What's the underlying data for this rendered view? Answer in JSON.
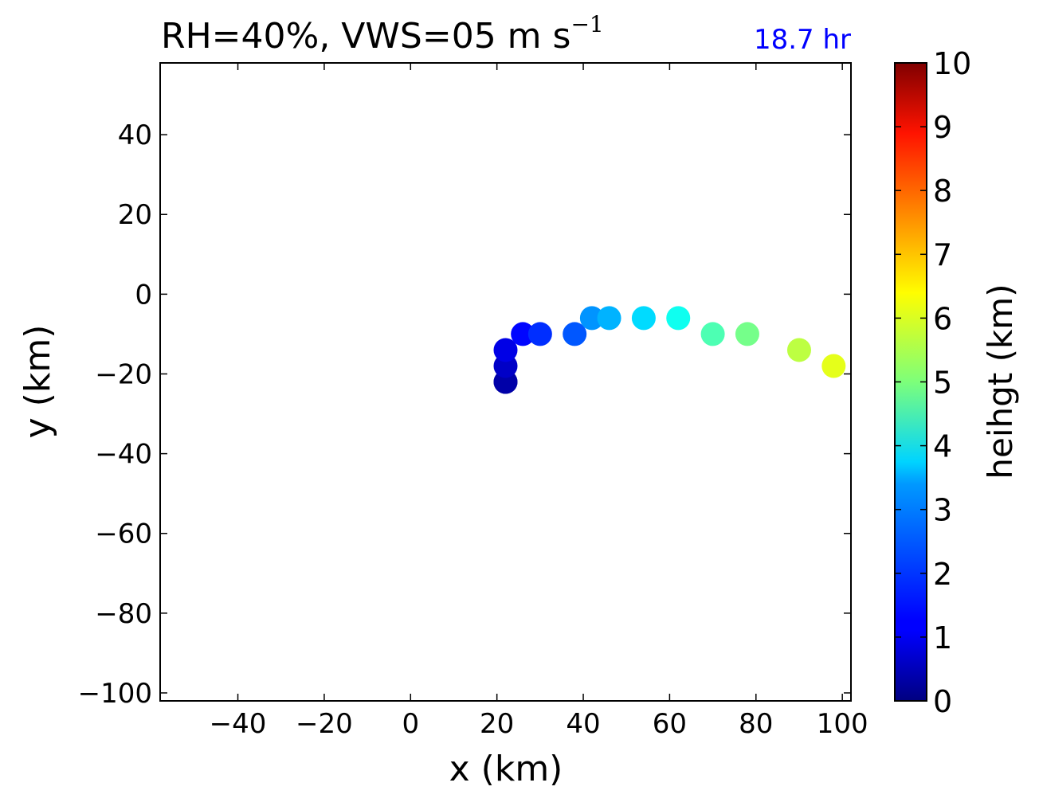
{
  "header": {
    "title_main": "RH=40%, VWS=05 m s",
    "title_exp": "−1",
    "time_label": "18.7 hr"
  },
  "chart_data": {
    "type": "scatter",
    "title": "RH=40%, VWS=05 m s−1",
    "annotation": "18.7 hr",
    "xlabel": "x (km)",
    "ylabel": "y (km)",
    "xlim": [
      -58,
      102
    ],
    "ylim": [
      -102,
      58
    ],
    "xticks": [
      -40,
      -20,
      0,
      20,
      40,
      60,
      80,
      100
    ],
    "yticks": [
      40,
      20,
      0,
      -20,
      -40,
      -60,
      -80,
      -100
    ],
    "grid": false,
    "colorbar": {
      "label": "heihgt (km)",
      "colormap": "jet",
      "range": [
        0,
        10
      ],
      "ticks": [
        0,
        1,
        2,
        3,
        4,
        5,
        6,
        7,
        8,
        9,
        10
      ]
    },
    "points": [
      {
        "x": 22,
        "y": -22,
        "height": 0.0
      },
      {
        "x": 22,
        "y": -22,
        "height": 0.4
      },
      {
        "x": 22,
        "y": -18,
        "height": 0.7
      },
      {
        "x": 22,
        "y": -14,
        "height": 1.0
      },
      {
        "x": 26,
        "y": -10,
        "height": 1.3
      },
      {
        "x": 30,
        "y": -10,
        "height": 1.7
      },
      {
        "x": 38,
        "y": -10,
        "height": 2.1
      },
      {
        "x": 42,
        "y": -6,
        "height": 2.7
      },
      {
        "x": 46,
        "y": -6,
        "height": 3.0
      },
      {
        "x": 54,
        "y": -6,
        "height": 3.4
      },
      {
        "x": 62,
        "y": -6,
        "height": 3.9
      },
      {
        "x": 70,
        "y": -10,
        "height": 4.5
      },
      {
        "x": 78,
        "y": -10,
        "height": 4.9
      },
      {
        "x": 90,
        "y": -14,
        "height": 5.6
      },
      {
        "x": 98,
        "y": -18,
        "height": 6.0
      }
    ]
  }
}
